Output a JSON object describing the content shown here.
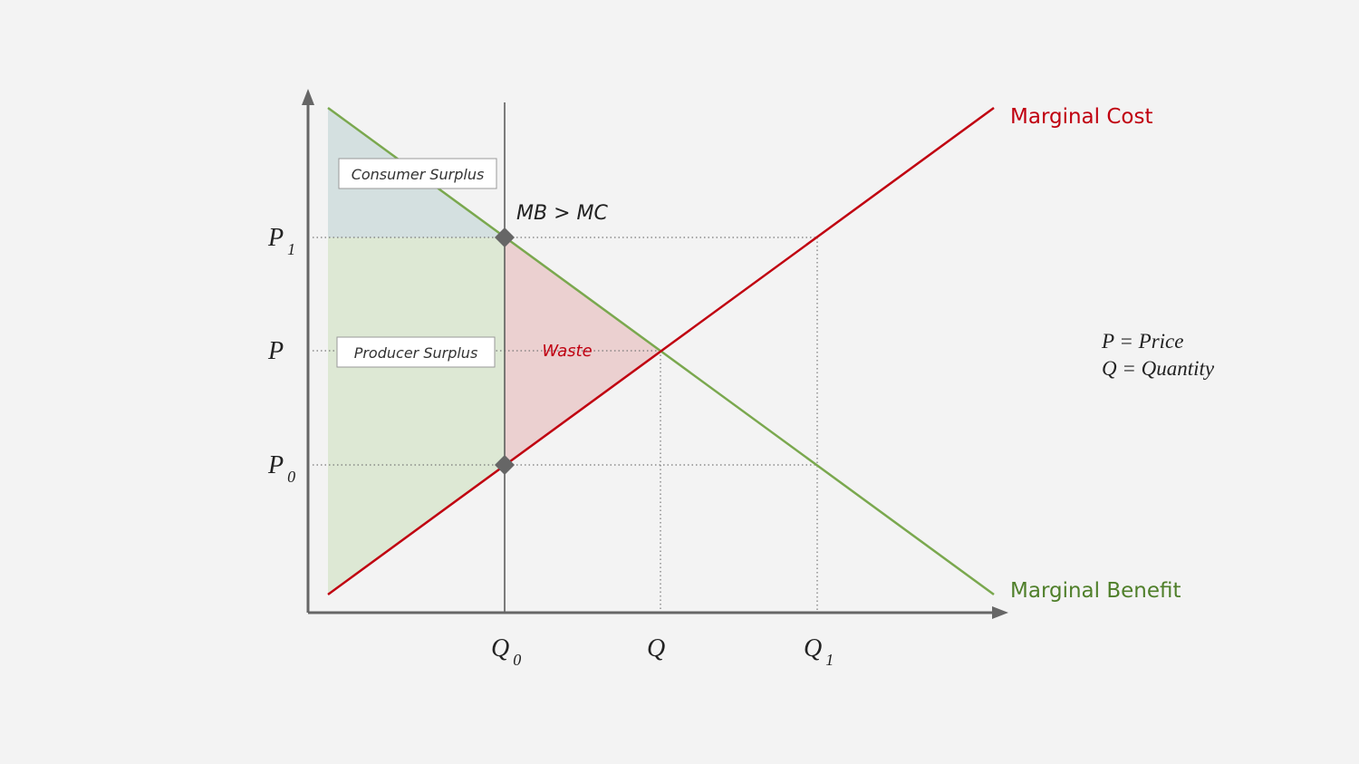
{
  "diagram": {
    "curves": {
      "marginal_cost": "Marginal Cost",
      "marginal_benefit": "Marginal Benefit"
    },
    "regions": {
      "consumer_surplus": "Consumer Surplus",
      "producer_surplus": "Producer Surplus",
      "waste": "Waste"
    },
    "annotation": "MB > MC",
    "price_labels": [
      {
        "symbol": "P",
        "subscript": "1"
      },
      {
        "symbol": "P"
      },
      {
        "symbol": "P",
        "subscript": "0"
      }
    ],
    "quantity_labels": [
      {
        "symbol": "Q",
        "subscript": "0"
      },
      {
        "symbol": "Q"
      },
      {
        "symbol": "Q",
        "subscript": "1"
      }
    ],
    "key": [
      "P = Price",
      "Q = Quantity"
    ]
  }
}
